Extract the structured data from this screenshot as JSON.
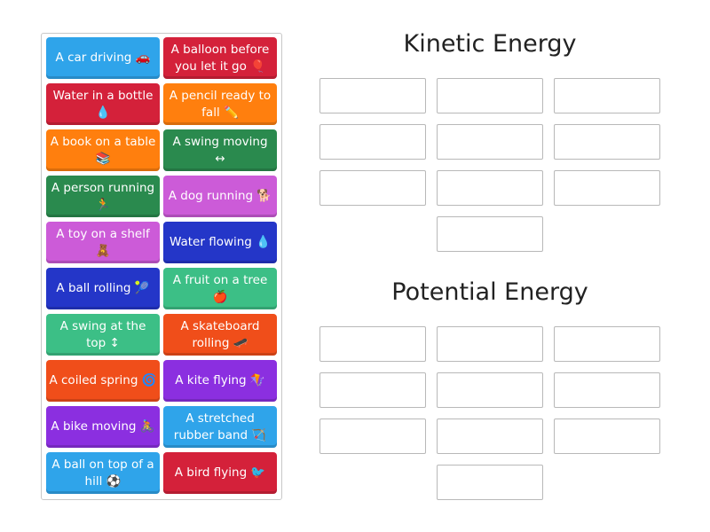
{
  "cards": [
    {
      "label": "A car driving 🚗",
      "color": "#2fa4ea"
    },
    {
      "label": "A balloon before you let it go 🎈",
      "color": "#d4213a"
    },
    {
      "label": "Water in a bottle 💧",
      "color": "#d4213a"
    },
    {
      "label": "A pencil ready to fall ✏️",
      "color": "#ff7f0e"
    },
    {
      "label": "A book on a table 📚",
      "color": "#ff7f0e"
    },
    {
      "label": "A swing moving ↔",
      "color": "#2a8a4e"
    },
    {
      "label": "A person running 🏃",
      "color": "#2a8a4e"
    },
    {
      "label": "A dog running 🐕",
      "color": "#cc5bd8"
    },
    {
      "label": "A toy on a shelf 🧸",
      "color": "#cc5bd8"
    },
    {
      "label": "Water flowing 💧",
      "color": "#2436c8"
    },
    {
      "label": "A ball rolling 🎾",
      "color": "#2436c8"
    },
    {
      "label": "A fruit on a tree 🍎",
      "color": "#3cbf86"
    },
    {
      "label": "A swing at the top ↕",
      "color": "#3cbf86"
    },
    {
      "label": "A skateboard rolling 🛹",
      "color": "#f04e1a"
    },
    {
      "label": "A coiled spring 🌀",
      "color": "#f04e1a"
    },
    {
      "label": "A kite flying 🪁",
      "color": "#8b2fe0"
    },
    {
      "label": "A bike moving 🚴",
      "color": "#8b2fe0"
    },
    {
      "label": "A stretched rubber band 🏹",
      "color": "#2fa4ea"
    },
    {
      "label": "A ball on top of a hill ⚽",
      "color": "#2fa4ea"
    },
    {
      "label": "A bird flying 🐦",
      "color": "#d4213a"
    }
  ],
  "groups": [
    {
      "title": "Kinetic Energy"
    },
    {
      "title": "Potential Energy"
    }
  ]
}
